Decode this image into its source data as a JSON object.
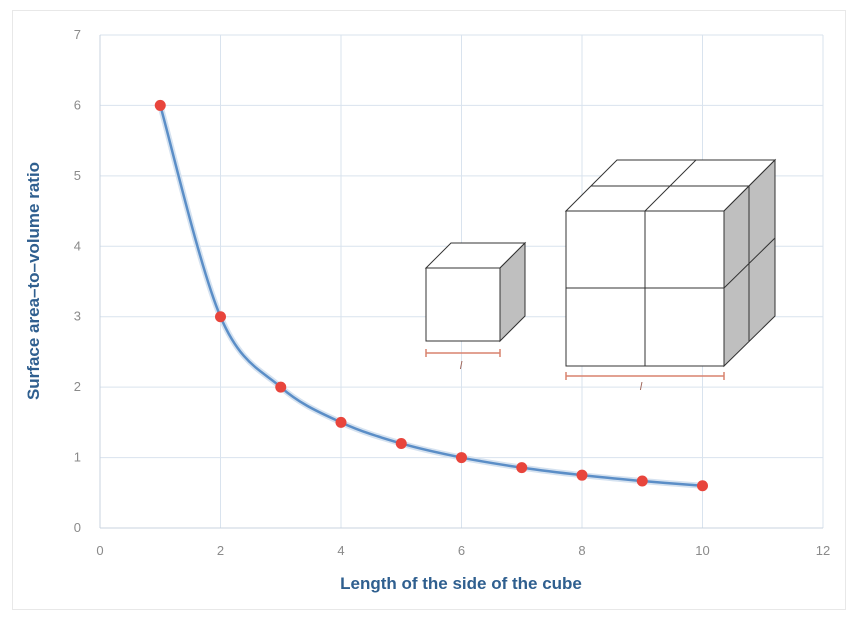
{
  "chart_data": {
    "type": "line",
    "title": "",
    "xlabel": "Length of the side of the cube",
    "ylabel": "Surface  area–to–volume ratio",
    "xlim": [
      0,
      12
    ],
    "ylim": [
      0,
      7
    ],
    "x_ticks": [
      0,
      2,
      4,
      6,
      8,
      10,
      12
    ],
    "y_ticks": [
      0,
      1,
      2,
      3,
      4,
      5,
      6,
      7
    ],
    "grid": true,
    "legend": "none",
    "series": [
      {
        "x": [
          1,
          2,
          3,
          4,
          5,
          6,
          7,
          8,
          9,
          10
        ],
        "y": [
          6,
          3,
          2,
          1.5,
          1.2,
          1,
          0.857,
          0.75,
          0.667,
          0.6
        ],
        "line_color": "#5b8ec7",
        "marker_color": "#e8453c"
      }
    ],
    "annotations": {
      "small_cube_label": "l",
      "large_cube_label": "l"
    }
  },
  "colors": {
    "grid": "#d9e3ee",
    "cube_edge": "#333333",
    "cube_side": "#bfbfbf",
    "measure_bar": "#d9826e"
  }
}
